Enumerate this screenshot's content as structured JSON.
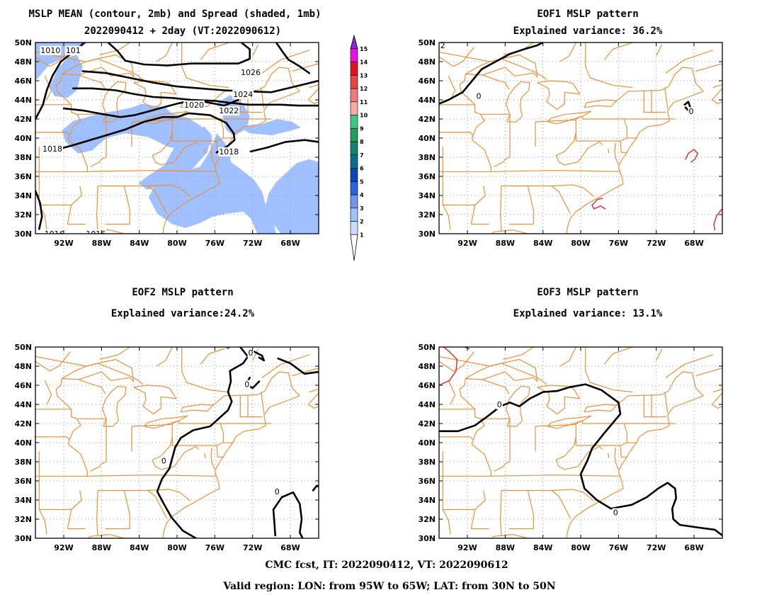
{
  "panels": [
    {
      "title_line1": "MSLP MEAN (contour, 2mb) and Spread (shaded, 1mb)",
      "title_line2": "2022090412 + 2day (VT:2022090612)",
      "contour_labels": [
        "1018",
        "1018",
        "1020",
        "1022",
        "1024",
        "1026",
        "1016",
        "1016",
        "1010",
        "101"
      ]
    },
    {
      "title_line1": "EOF1 MSLP pattern",
      "title_line2": "Explained variance: 36.2%",
      "contour_labels": [
        "0",
        "0",
        "2"
      ]
    },
    {
      "title_line1": "EOF2 MSLP pattern",
      "title_line2": "Explained variance:24.2%",
      "contour_labels": [
        "0",
        "0",
        "0",
        "0",
        "0"
      ]
    },
    {
      "title_line1": "EOF3 MSLP pattern",
      "title_line2": "Explained variance: 13.1%",
      "contour_labels": [
        "0",
        "0"
      ]
    }
  ],
  "axes": {
    "lon_ticks": [
      "92W",
      "88W",
      "84W",
      "80W",
      "76W",
      "72W",
      "68W"
    ],
    "lat_ticks": [
      "30N",
      "32N",
      "34N",
      "36N",
      "38N",
      "40N",
      "42N",
      "44N",
      "46N",
      "48N",
      "50N"
    ]
  },
  "colorbar": {
    "levels": [
      "1",
      "2",
      "3",
      "4",
      "5",
      "6",
      "7",
      "8",
      "9",
      "10",
      "11",
      "12",
      "13",
      "14",
      "15"
    ],
    "colors": [
      "#c8dcff",
      "#a0c0ff",
      "#6e96f0",
      "#2864dc",
      "#0a46b4",
      "#0a6e8c",
      "#12826e",
      "#1ea05a",
      "#3cc882",
      "#f5aaa5",
      "#f07a78",
      "#e84646",
      "#e0141e",
      "#e614dc",
      "#8c28dc"
    ]
  },
  "footer": {
    "line1": "CMC fcst, IT: 2022090412, VT: 2022090612",
    "line2": "Valid region: LON: from 95W to 65W; LAT: from 30N to 50N"
  }
}
